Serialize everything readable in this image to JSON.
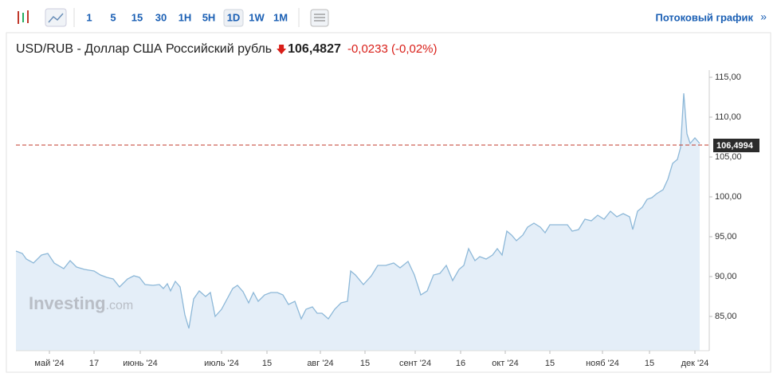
{
  "toolbar": {
    "buttons": [
      "1",
      "5",
      "15",
      "30",
      "1H",
      "5H",
      "1D",
      "1W",
      "1M"
    ],
    "active": "1D",
    "stream_link": "Потоковый график"
  },
  "watermark": {
    "brand": "Investing",
    "domain": ".com"
  },
  "chart_data": {
    "type": "area",
    "title": "USD/RUB - Доллар США Российский рубль",
    "price": "106,4827",
    "change": "-0,0233",
    "change_percent": "(-0,02%)",
    "x": [
      0,
      8,
      13,
      22,
      32,
      40,
      48,
      60,
      68,
      76,
      86,
      98,
      106,
      114,
      122,
      130,
      140,
      148,
      155,
      162,
      172,
      180,
      185,
      190,
      194,
      200,
      206,
      212,
      217,
      223,
      230,
      238,
      244,
      250,
      258,
      265,
      272,
      278,
      285,
      292,
      298,
      304,
      312,
      320,
      328,
      335,
      342,
      350,
      358,
      364,
      372,
      378,
      384,
      392,
      400,
      408,
      416,
      420,
      426,
      436,
      446,
      454,
      464,
      474,
      482,
      492,
      500,
      508,
      516,
      524,
      532,
      540,
      548,
      556,
      562,
      568,
      576,
      582,
      590,
      598,
      604,
      610,
      616,
      622,
      628,
      636,
      642,
      650,
      658,
      664,
      670,
      680,
      692,
      698,
      706,
      714,
      722,
      730,
      738,
      746,
      754,
      762,
      770,
      774,
      780,
      786,
      792,
      798,
      804,
      812,
      818,
      824,
      830,
      834,
      838,
      842,
      846,
      852,
      858
    ],
    "series": [
      {
        "name": "USD/RUB",
        "color": "#8db8d8",
        "fill": "#e4eef8",
        "values": [
          93.2,
          92.9,
          92.2,
          91.7,
          92.7,
          92.9,
          91.7,
          91.0,
          92.0,
          91.2,
          90.9,
          90.7,
          90.2,
          89.9,
          89.7,
          88.7,
          89.7,
          90.1,
          89.9,
          89.0,
          88.9,
          89.0,
          88.5,
          89.1,
          88.2,
          89.4,
          88.7,
          85.2,
          83.5,
          87.2,
          88.2,
          87.5,
          88.0,
          85.0,
          85.9,
          87.2,
          88.5,
          88.9,
          88.1,
          86.7,
          88.0,
          86.9,
          87.7,
          88.0,
          88.0,
          87.7,
          86.5,
          86.9,
          84.7,
          85.9,
          86.2,
          85.4,
          85.4,
          84.7,
          85.9,
          86.7,
          86.9,
          90.7,
          90.2,
          89.0,
          90.1,
          91.4,
          91.4,
          91.7,
          91.1,
          91.9,
          90.2,
          87.7,
          88.2,
          90.2,
          90.4,
          91.4,
          89.5,
          90.9,
          91.4,
          93.5,
          92.0,
          92.5,
          92.2,
          92.7,
          93.5,
          92.7,
          95.7,
          95.2,
          94.5,
          95.2,
          96.2,
          96.7,
          96.2,
          95.5,
          96.5,
          96.5,
          96.5,
          95.7,
          95.9,
          97.2,
          97.0,
          97.7,
          97.2,
          98.2,
          97.5,
          97.9,
          97.5,
          95.9,
          98.2,
          98.7,
          99.7,
          99.9,
          100.4,
          100.9,
          102.2,
          104.2,
          104.7,
          106.2,
          113.0,
          107.9,
          106.7,
          107.4,
          106.7
        ]
      }
    ],
    "xlim": [
      0,
      870
    ],
    "xticks": [
      {
        "value": 42,
        "label": "май '24"
      },
      {
        "value": 98,
        "label": "17"
      },
      {
        "value": 156,
        "label": "июнь '24"
      },
      {
        "value": 258,
        "label": "июль '24"
      },
      {
        "value": 315,
        "label": "15"
      },
      {
        "value": 382,
        "label": "авг '24"
      },
      {
        "value": 438,
        "label": "15"
      },
      {
        "value": 501,
        "label": "сент '24"
      },
      {
        "value": 558,
        "label": "16"
      },
      {
        "value": 614,
        "label": "окт '24"
      },
      {
        "value": 670,
        "label": "15"
      },
      {
        "value": 736,
        "label": "нояб '24"
      },
      {
        "value": 795,
        "label": "15"
      },
      {
        "value": 852,
        "label": "дек '24"
      }
    ],
    "ylim": [
      80.7,
      115.9
    ],
    "yticks": [
      {
        "value": 85,
        "label": "85,00"
      },
      {
        "value": 90,
        "label": "90,00"
      },
      {
        "value": 95,
        "label": "95,00"
      },
      {
        "value": 100,
        "label": "100,00"
      },
      {
        "value": 105,
        "label": "105,00"
      },
      {
        "value": 110,
        "label": "110,00"
      },
      {
        "value": 115,
        "label": "115,00"
      }
    ],
    "reference_line": {
      "value": 106.4994,
      "label": "106,4994",
      "color": "#c0392b"
    },
    "grid": false
  }
}
